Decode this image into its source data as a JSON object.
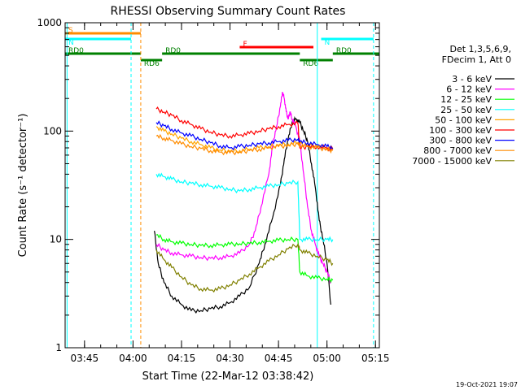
{
  "chart_data": {
    "type": "line",
    "title": "RHESSI Observing Summary Count Rates",
    "xlabel": "Start Time (22-Mar-12 03:38:42)",
    "ylabel": "Count Rate (s⁻¹ detector⁻¹)",
    "yscale": "log",
    "ylim": [
      1,
      1000
    ],
    "xlim_minutes": [
      3.65,
      5.27
    ],
    "x_unit": "hours after 00:00 UT",
    "x_ticks": [
      {
        "value": 3.75,
        "label": "03:45"
      },
      {
        "value": 4.0,
        "label": "04:00"
      },
      {
        "value": 4.25,
        "label": "04:15"
      },
      {
        "value": 4.5,
        "label": "04:30"
      },
      {
        "value": 4.75,
        "label": "04:45"
      },
      {
        "value": 5.0,
        "label": "05:00"
      },
      {
        "value": 5.25,
        "label": "05:15"
      }
    ],
    "y_ticks": [
      {
        "value": 1,
        "label": "1"
      },
      {
        "value": 10,
        "label": "10"
      },
      {
        "value": 100,
        "label": "100"
      },
      {
        "value": 1000,
        "label": "1000"
      }
    ],
    "legend_header": [
      "Det 1,3,5,6,9,",
      "FDecim 1, Att 0"
    ],
    "timestamp": "19-Oct-2021 19:07",
    "series": [
      {
        "name": "3 - 6 keV",
        "color": "#000000",
        "x": [
          4.1,
          4.11,
          4.13,
          4.16,
          4.2,
          4.25,
          4.3,
          4.35,
          4.4,
          4.45,
          4.5,
          4.55,
          4.6,
          4.65,
          4.68,
          4.72,
          4.76,
          4.78,
          4.8,
          4.82,
          4.84,
          4.86,
          4.88,
          4.9,
          4.92,
          4.94,
          4.96,
          4.98,
          5.0,
          5.02
        ],
        "y": [
          null,
          12,
          6,
          4,
          3,
          2.5,
          2.2,
          2.2,
          2.3,
          2.4,
          2.6,
          3,
          3.6,
          6,
          9,
          16,
          32,
          55,
          85,
          120,
          130,
          120,
          100,
          80,
          50,
          30,
          15,
          10,
          6,
          2.5
        ]
      },
      {
        "name": "6 - 12 keV",
        "color": "#ff00ff",
        "x": [
          4.1,
          4.12,
          4.16,
          4.2,
          4.25,
          4.3,
          4.35,
          4.4,
          4.45,
          4.5,
          4.55,
          4.6,
          4.63,
          4.66,
          4.7,
          4.72,
          4.74,
          4.76,
          4.77,
          4.78,
          4.79,
          4.8,
          4.81,
          4.82,
          4.84,
          4.86,
          4.88,
          4.9,
          4.92,
          4.94,
          4.96,
          4.98,
          5.0,
          5.02
        ],
        "y": [
          null,
          9,
          8,
          7.5,
          7.2,
          7,
          6.8,
          6.7,
          6.8,
          7,
          7.5,
          9,
          12,
          20,
          40,
          75,
          110,
          170,
          230,
          200,
          150,
          130,
          150,
          130,
          110,
          80,
          40,
          20,
          12,
          9,
          7,
          6,
          5,
          4
        ]
      },
      {
        "name": "12 - 25 keV",
        "color": "#00ff00",
        "x": [
          4.1,
          4.12,
          4.16,
          4.2,
          4.25,
          4.3,
          4.35,
          4.4,
          4.45,
          4.5,
          4.55,
          4.6,
          4.65,
          4.7,
          4.75,
          4.8,
          4.85,
          4.86,
          4.9,
          4.95,
          5.0,
          5.03
        ],
        "y": [
          null,
          11,
          10,
          9.5,
          9.2,
          9,
          8.8,
          8.8,
          8.9,
          9,
          9.1,
          9.2,
          9.4,
          9.6,
          9.8,
          10,
          10,
          5,
          4.6,
          4.4,
          4.3,
          4.2
        ]
      },
      {
        "name": "25 - 50 keV",
        "color": "#00ffff",
        "x": [
          4.1,
          4.12,
          4.16,
          4.2,
          4.25,
          4.3,
          4.35,
          4.4,
          4.45,
          4.5,
          4.55,
          4.6,
          4.65,
          4.7,
          4.75,
          4.8,
          4.85,
          4.86,
          4.9,
          4.95,
          5.0,
          5.03
        ],
        "y": [
          null,
          40,
          38,
          36,
          34,
          33,
          32,
          31,
          30,
          29,
          28,
          29,
          30,
          31,
          32,
          33,
          34,
          10,
          10,
          10,
          10,
          10
        ]
      },
      {
        "name": "50 - 100 keV",
        "color": "#ffa500",
        "x": [
          4.1,
          4.12,
          4.16,
          4.2,
          4.25,
          4.3,
          4.35,
          4.4,
          4.45,
          4.5,
          4.55,
          4.6,
          4.65,
          4.7,
          4.75,
          4.8,
          4.85,
          4.86,
          4.9,
          4.95,
          5.0,
          5.03
        ],
        "y": [
          null,
          110,
          100,
          94,
          86,
          80,
          75,
          70,
          67,
          65,
          66,
          68,
          70,
          72,
          74,
          76,
          78,
          76,
          74,
          72,
          70,
          68
        ]
      },
      {
        "name": "100 - 300 keV",
        "color": "#ff0000",
        "x": [
          4.1,
          4.12,
          4.16,
          4.2,
          4.25,
          4.3,
          4.35,
          4.4,
          4.45,
          4.5,
          4.55,
          4.6,
          4.65,
          4.7,
          4.75,
          4.8,
          4.85,
          4.86,
          4.9,
          4.95,
          5.0,
          5.03
        ],
        "y": [
          null,
          160,
          150,
          140,
          125,
          115,
          105,
          98,
          92,
          90,
          92,
          95,
          100,
          105,
          110,
          115,
          118,
          70,
          72,
          72,
          70,
          68
        ]
      },
      {
        "name": "300 - 800 keV",
        "color": "#0000ff",
        "x": [
          4.1,
          4.12,
          4.16,
          4.2,
          4.25,
          4.3,
          4.35,
          4.4,
          4.45,
          4.5,
          4.55,
          4.6,
          4.65,
          4.7,
          4.75,
          4.8,
          4.85,
          4.86,
          4.9,
          4.95,
          5.0,
          5.03
        ],
        "y": [
          null,
          120,
          112,
          104,
          96,
          90,
          84,
          78,
          73,
          70,
          72,
          74,
          76,
          78,
          80,
          82,
          84,
          80,
          78,
          75,
          72,
          70
        ]
      },
      {
        "name": "800 - 7000 keV",
        "color": "#ff8c00",
        "x": [
          4.1,
          4.12,
          4.16,
          4.2,
          4.25,
          4.3,
          4.35,
          4.4,
          4.45,
          4.5,
          4.55,
          4.6,
          4.65,
          4.7,
          4.75,
          4.8,
          4.85,
          4.86,
          4.9,
          4.95,
          5.0,
          5.03
        ],
        "y": [
          null,
          90,
          86,
          82,
          76,
          72,
          69,
          66,
          64,
          63,
          64,
          66,
          68,
          70,
          72,
          74,
          76,
          74,
          72,
          70,
          68,
          66
        ]
      },
      {
        "name": "7000 - 15000 keV",
        "color": "#808000",
        "x": [
          4.1,
          4.12,
          4.16,
          4.2,
          4.25,
          4.3,
          4.35,
          4.4,
          4.45,
          4.5,
          4.55,
          4.6,
          4.65,
          4.7,
          4.75,
          4.8,
          4.85,
          4.86,
          4.9,
          4.95,
          5.0,
          5.03
        ],
        "y": [
          null,
          8,
          6.5,
          5.5,
          4.5,
          3.8,
          3.5,
          3.4,
          3.5,
          3.8,
          4.2,
          4.8,
          5.5,
          6.3,
          7.2,
          8.2,
          9,
          8,
          7.5,
          7,
          6.5,
          6
        ]
      }
    ],
    "state_bars": [
      {
        "label": "S",
        "color": "#ff8c00",
        "y_level": "top",
        "x_start": 3.65,
        "x_end": 4.04
      },
      {
        "label": "N",
        "color": "#00ffff",
        "y_level": "upper",
        "x_start": 3.65,
        "x_end": 3.99
      },
      {
        "label": "N",
        "color": "#00ffff",
        "y_level": "upper",
        "x_start": 4.97,
        "x_end": 5.24
      },
      {
        "label": "F",
        "color": "#ff0000",
        "y_level": "middle",
        "x_start": 4.55,
        "x_end": 4.93
      },
      {
        "label": "RD0",
        "color": "#008000",
        "y_level": "lower",
        "x_start": 3.65,
        "x_end": 4.04
      },
      {
        "label": "RD0",
        "color": "#008000",
        "y_level": "lower",
        "x_start": 4.15,
        "x_end": 4.86
      },
      {
        "label": "RD0",
        "color": "#008000",
        "y_level": "lower",
        "x_start": 5.03,
        "x_end": 5.27
      },
      {
        "label": "RD6",
        "color": "#008000",
        "y_level": "lowest",
        "x_start": 4.04,
        "x_end": 4.15
      },
      {
        "label": "RD6",
        "color": "#008000",
        "y_level": "lowest",
        "x_start": 4.86,
        "x_end": 5.03
      }
    ],
    "vertical_markers": [
      {
        "x": 3.66,
        "color": "#00ffff",
        "style": "solid"
      },
      {
        "x": 3.99,
        "color": "#00ffff",
        "style": "dashed"
      },
      {
        "x": 4.04,
        "color": "#ff8c00",
        "style": "dashed"
      },
      {
        "x": 4.95,
        "color": "#00ffff",
        "style": "solid"
      },
      {
        "x": 5.24,
        "color": "#00ffff",
        "style": "dashed"
      }
    ]
  }
}
